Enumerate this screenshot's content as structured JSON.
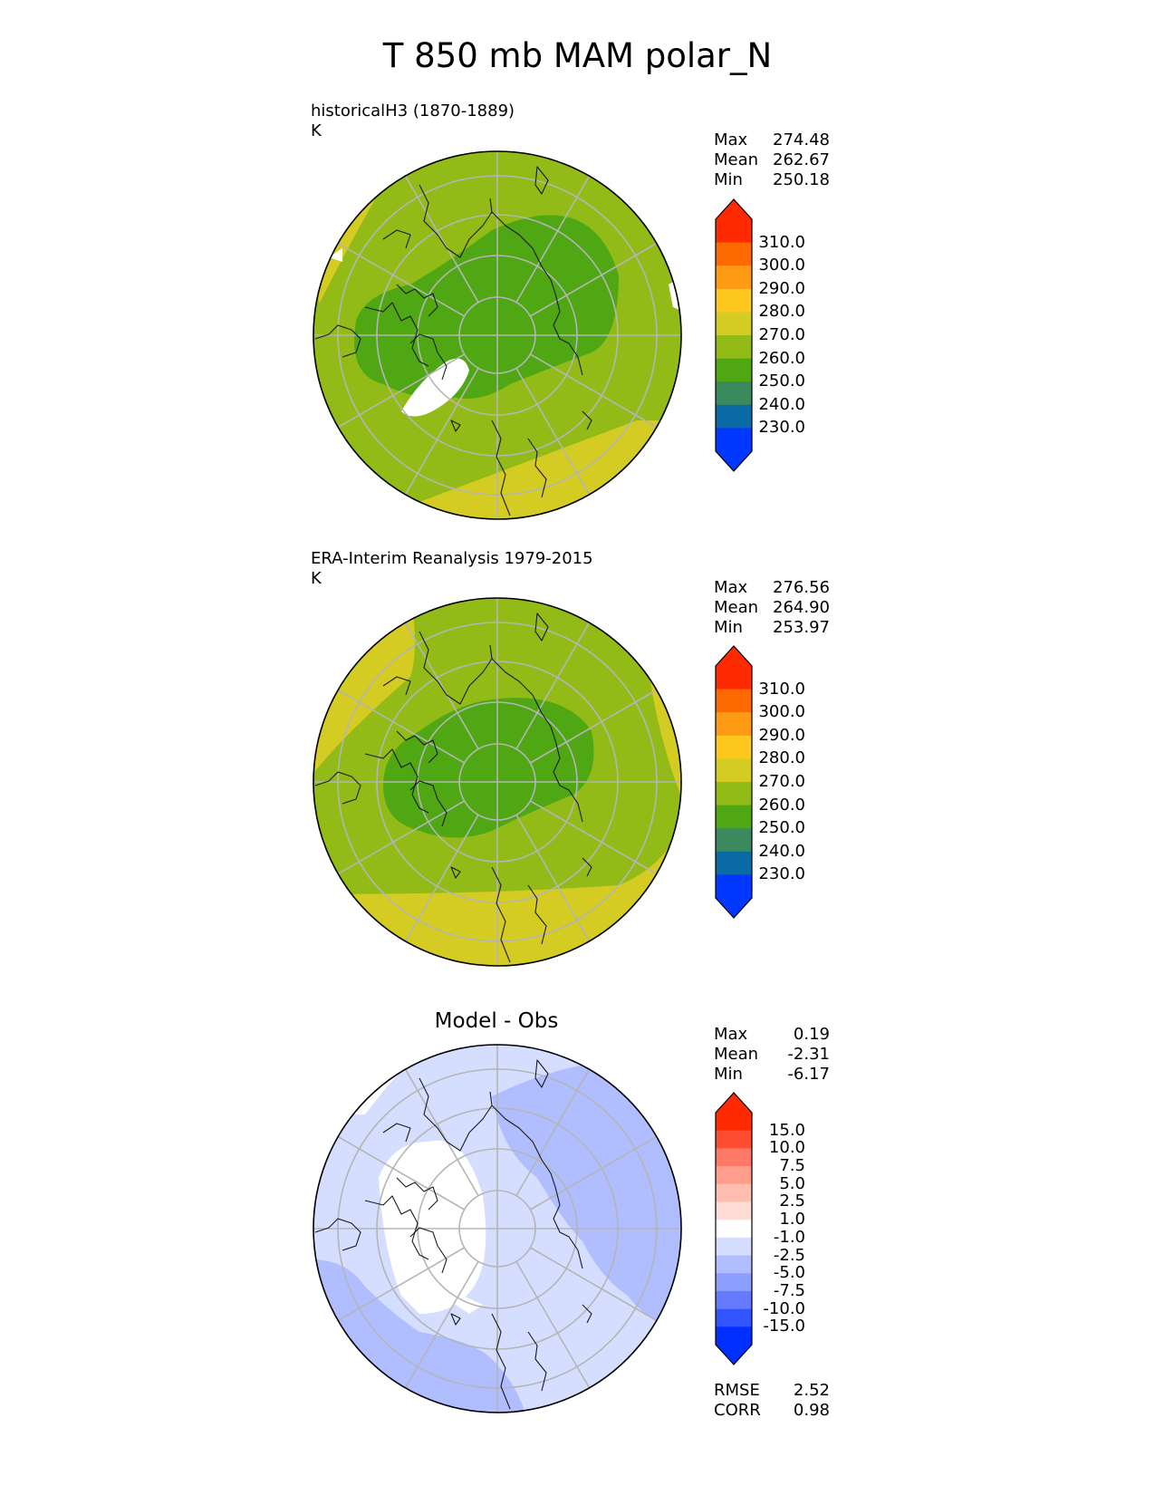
{
  "title": "T 850 mb MAM polar_N",
  "panels": [
    {
      "id": "test",
      "label_line1": "historicalH3 (1870-1889)",
      "label_line2": "K",
      "stats": [
        {
          "label": "Max",
          "value": "274.48"
        },
        {
          "label": "Mean",
          "value": "262.67"
        },
        {
          "label": "Min",
          "value": "250.18"
        }
      ],
      "colorbar": {
        "ticks": [
          "310.0",
          "300.0",
          "290.0",
          "280.0",
          "270.0",
          "260.0",
          "250.0",
          "240.0",
          "230.0"
        ],
        "colors": [
          "#ff2a00",
          "#ff6a00",
          "#ff9a14",
          "#ffc81f",
          "#d4cc22",
          "#93bb17",
          "#4ea713",
          "#3a8a5e",
          "#0a6aa6",
          "#0038ff"
        ],
        "over_color": "#ff2a00",
        "under_color": "#0038ff"
      },
      "field": {
        "outer_color": "#93bb17",
        "band_color": "#d4cc22",
        "core_color": "#4ea713",
        "gap_color": "#ffffff"
      }
    },
    {
      "id": "reference",
      "label_line1": "ERA-Interim Reanalysis 1979-2015",
      "label_line2": "K",
      "stats": [
        {
          "label": "Max",
          "value": "276.56"
        },
        {
          "label": "Mean",
          "value": "264.90"
        },
        {
          "label": "Min",
          "value": "253.97"
        }
      ],
      "colorbar": {
        "ticks": [
          "310.0",
          "300.0",
          "290.0",
          "280.0",
          "270.0",
          "260.0",
          "250.0",
          "240.0",
          "230.0"
        ],
        "colors": [
          "#ff2a00",
          "#ff6a00",
          "#ff9a14",
          "#ffc81f",
          "#d4cc22",
          "#93bb17",
          "#4ea713",
          "#3a8a5e",
          "#0a6aa6",
          "#0038ff"
        ],
        "over_color": "#ff2a00",
        "under_color": "#0038ff"
      },
      "field": {
        "outer_color": "#93bb17",
        "band_color": "#d4cc22",
        "core_color": "#4ea713"
      }
    },
    {
      "id": "difference",
      "center_title": "Model - Obs",
      "stats": [
        {
          "label": "Max",
          "value": "0.19"
        },
        {
          "label": "Mean",
          "value": "-2.31"
        },
        {
          "label": "Min",
          "value": "-6.17"
        }
      ],
      "colorbar": {
        "ticks": [
          "15.0",
          "10.0",
          "7.5",
          "5.0",
          "2.5",
          "1.0",
          "-1.0",
          "-2.5",
          "-5.0",
          "-7.5",
          "-10.0",
          "-15.0"
        ],
        "colors": [
          "#ff2a00",
          "#ff4d33",
          "#ff7a66",
          "#ff9e8c",
          "#ffbdb0",
          "#ffdcd6",
          "#ffffff",
          "#d6deff",
          "#b0bdff",
          "#8c9eff",
          "#667aff",
          "#3355ff",
          "#0030ff"
        ],
        "over_color": "#ff2a00",
        "under_color": "#0030ff"
      },
      "field": {
        "base_color": "#d6deff",
        "darker_color": "#b0bdff",
        "white_color": "#ffffff"
      },
      "metrics": [
        {
          "label": "RMSE",
          "value": "2.52"
        },
        {
          "label": "CORR",
          "value": "0.98"
        }
      ]
    }
  ]
}
